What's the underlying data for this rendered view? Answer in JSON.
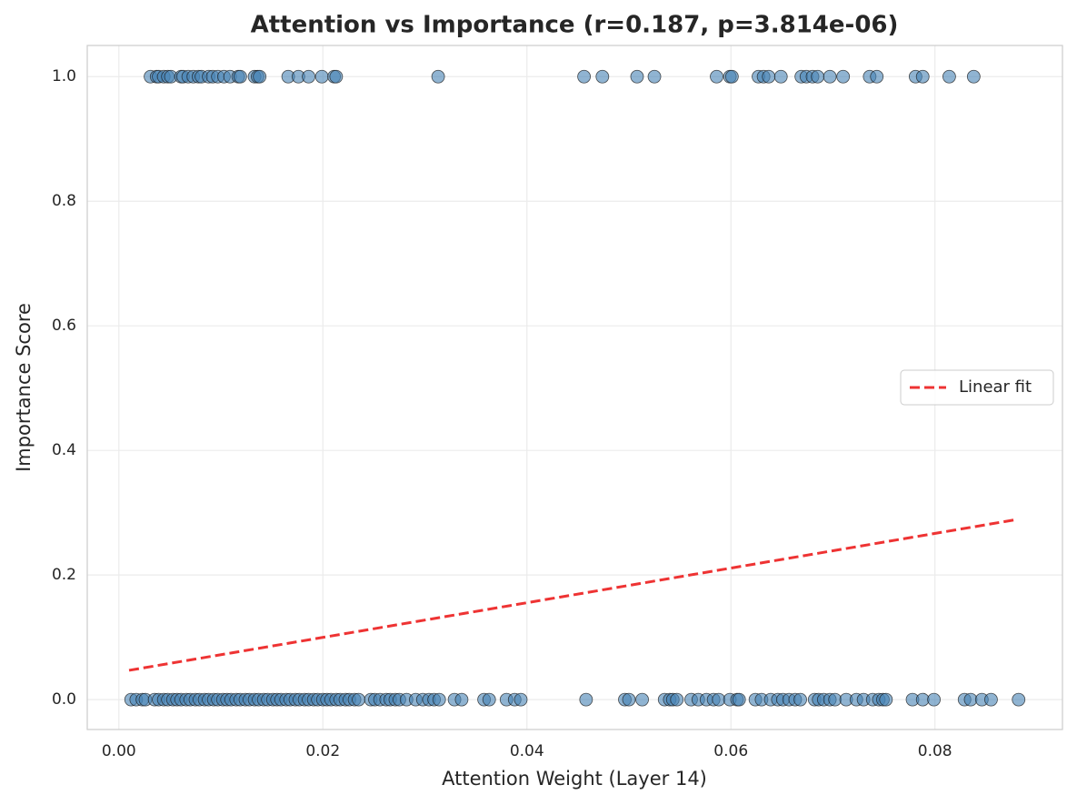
{
  "chart_data": {
    "type": "scatter",
    "title": "Attention vs Importance (r=0.187, p=3.814e-06)",
    "x_label": "Attention Weight (Layer 14)",
    "y_label": "Importance Score",
    "xlim": [
      -0.0031,
      0.0925
    ],
    "ylim": [
      -0.048,
      1.05
    ],
    "xticks": [
      {
        "value": 0,
        "label": "0.00"
      },
      {
        "value": 0.02,
        "label": "0.02"
      },
      {
        "value": 0.04,
        "label": "0.04"
      },
      {
        "value": 0.06,
        "label": "0.06"
      },
      {
        "value": 0.08,
        "label": "0.08"
      }
    ],
    "yticks": [
      {
        "value": 0,
        "label": "0.0"
      },
      0.2,
      0.4,
      0.6,
      0.8,
      {
        "value": 1,
        "label": "1.0"
      }
    ],
    "grid": true,
    "legend_position": "center right",
    "series": [
      {
        "type": "scatter",
        "color": "#4682b4",
        "x": [
          0.0031,
          0.0037,
          0.0039,
          0.0044,
          0.0048,
          0.0051,
          0.0061,
          0.0063,
          0.0068,
          0.0073,
          0.0078,
          0.0081,
          0.0088,
          0.0092,
          0.0097,
          0.0103,
          0.0109,
          0.0117,
          0.0119,
          0.0133,
          0.0136,
          0.0138,
          0.0166,
          0.0176,
          0.0186,
          0.0199,
          0.0211,
          0.0213,
          0.0313,
          0.0456,
          0.0474,
          0.0508,
          0.0525,
          0.0586,
          0.0599,
          0.0601,
          0.0627,
          0.0632,
          0.0637,
          0.0649,
          0.0669,
          0.0674,
          0.068,
          0.0685,
          0.0697,
          0.071,
          0.0736,
          0.0743,
          0.0781,
          0.0788,
          0.0814,
          0.0838
        ],
        "values": [
          1,
          1,
          1,
          1,
          1,
          1,
          1,
          1,
          1,
          1,
          1,
          1,
          1,
          1,
          1,
          1,
          1,
          1,
          1,
          1,
          1,
          1,
          1,
          1,
          1,
          1,
          1,
          1,
          1,
          1,
          1,
          1,
          1,
          1,
          1,
          1,
          1,
          1,
          1,
          1,
          1,
          1,
          1,
          1,
          1,
          1,
          1,
          1,
          1,
          1,
          1,
          1
        ]
      },
      {
        "type": "scatter",
        "color": "#4682b4",
        "x": [
          0.0012,
          0.0017,
          0.0023,
          0.0026,
          0.0035,
          0.0039,
          0.0044,
          0.0048,
          0.0053,
          0.0057,
          0.0061,
          0.0066,
          0.007,
          0.0075,
          0.0079,
          0.0084,
          0.0088,
          0.0093,
          0.0097,
          0.0102,
          0.0106,
          0.011,
          0.0115,
          0.0119,
          0.0124,
          0.0128,
          0.0133,
          0.0137,
          0.0142,
          0.0146,
          0.0151,
          0.0155,
          0.0159,
          0.0164,
          0.0168,
          0.0173,
          0.0177,
          0.0182,
          0.0186,
          0.0191,
          0.0195,
          0.02,
          0.0204,
          0.0208,
          0.0213,
          0.0217,
          0.0222,
          0.0226,
          0.0231,
          0.0235,
          0.0247,
          0.0251,
          0.0256,
          0.0262,
          0.0266,
          0.0271,
          0.0275,
          0.0282,
          0.0291,
          0.0298,
          0.0304,
          0.0309,
          0.0314,
          0.0329,
          0.0336,
          0.0358,
          0.0363,
          0.038,
          0.0388,
          0.0394,
          0.0458,
          0.0496,
          0.05,
          0.0513,
          0.0535,
          0.054,
          0.0543,
          0.0547,
          0.0561,
          0.0568,
          0.0576,
          0.0583,
          0.0588,
          0.0599,
          0.0606,
          0.0608,
          0.0624,
          0.063,
          0.0639,
          0.0646,
          0.0651,
          0.0657,
          0.0663,
          0.0668,
          0.0682,
          0.0686,
          0.0691,
          0.0697,
          0.0702,
          0.0713,
          0.0723,
          0.073,
          0.0739,
          0.0745,
          0.0749,
          0.0752,
          0.0778,
          0.0788,
          0.0799,
          0.0829,
          0.0835,
          0.0846,
          0.0855,
          0.0882
        ],
        "values": [
          0,
          0,
          0,
          0,
          0,
          0,
          0,
          0,
          0,
          0,
          0,
          0,
          0,
          0,
          0,
          0,
          0,
          0,
          0,
          0,
          0,
          0,
          0,
          0,
          0,
          0,
          0,
          0,
          0,
          0,
          0,
          0,
          0,
          0,
          0,
          0,
          0,
          0,
          0,
          0,
          0,
          0,
          0,
          0,
          0,
          0,
          0,
          0,
          0,
          0,
          0,
          0,
          0,
          0,
          0,
          0,
          0,
          0,
          0,
          0,
          0,
          0,
          0,
          0,
          0,
          0,
          0,
          0,
          0,
          0,
          0,
          0,
          0,
          0,
          0,
          0,
          0,
          0,
          0,
          0,
          0,
          0,
          0,
          0,
          0,
          0,
          0,
          0,
          0,
          0,
          0,
          0,
          0,
          0,
          0,
          0,
          0,
          0,
          0,
          0,
          0,
          0,
          0,
          0,
          0,
          0,
          0,
          0,
          0,
          0,
          0,
          0,
          0,
          0
        ]
      },
      {
        "type": "line",
        "name": "Linear fit",
        "color": "#ee3333",
        "dashed": true,
        "x": [
          0.001,
          0.088
        ],
        "values": [
          0.047,
          0.289
        ]
      }
    ]
  }
}
